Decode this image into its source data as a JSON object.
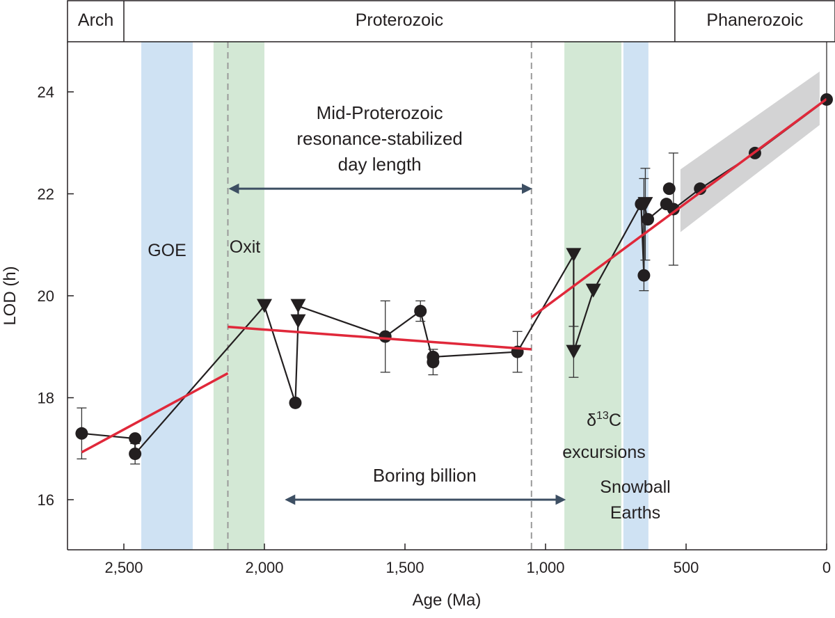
{
  "chart_data": {
    "type": "line",
    "xlabel": "Age (Ma)",
    "ylabel": "LOD (h)",
    "xlim": [
      2700,
      0
    ],
    "ylim": [
      15,
      25
    ],
    "x_reversed": true,
    "grid": false,
    "xticks": [
      2500,
      2000,
      1500,
      1000,
      500,
      0
    ],
    "xtick_labels": [
      "2,500",
      "2,000",
      "1,500",
      "1,000",
      "500",
      "0"
    ],
    "yticks": [
      16,
      18,
      20,
      22,
      24
    ],
    "ytick_labels": [
      "16",
      "18",
      "20",
      "22",
      "24"
    ],
    "eras": [
      {
        "label": "Arch",
        "from": 2700,
        "to": 2500
      },
      {
        "label": "Proterozoic",
        "from": 2500,
        "to": 540
      },
      {
        "label": "Phanerozoic",
        "from": 540,
        "to": 0
      }
    ],
    "bands": [
      {
        "label": "GOE",
        "from": 2438,
        "to": 2255,
        "color": "#cfe2f3"
      },
      {
        "label": "Oxit",
        "from": 2181,
        "to": 2000,
        "color": "#d3e8d5"
      },
      {
        "label_main": "δ",
        "label_sup": "13",
        "label_rest": "C",
        "label_line2": "excursions",
        "from": 933,
        "to": 730,
        "color": "#d3e8d5"
      },
      {
        "label_line1": "Snowball",
        "label_line2": "Earths",
        "from": 723,
        "to": 634,
        "color": "#cfe2f3"
      }
    ],
    "dashed_lines": [
      2130,
      1050
    ],
    "arrows": [
      {
        "lines": [
          "Mid-Proterozoic",
          "resonance-stabilized",
          "day length"
        ],
        "from": 2130,
        "to": 1050,
        "y": 22.1
      },
      {
        "lines": [
          "Boring billion"
        ],
        "from": 1930,
        "to": 930,
        "y": 16.0
      }
    ],
    "data_path": [
      [
        2650,
        17.3
      ],
      [
        2460,
        17.2
      ],
      [
        2460,
        16.9
      ],
      [
        2000,
        19.8
      ],
      [
        1890,
        17.9
      ],
      [
        1880,
        19.5
      ],
      [
        1880,
        19.8
      ],
      [
        1570,
        19.2
      ],
      [
        1445,
        19.7
      ],
      [
        1400,
        18.7
      ],
      [
        1400,
        18.8
      ],
      [
        1100,
        18.9
      ],
      [
        900,
        20.8
      ],
      [
        900,
        18.9
      ],
      [
        830,
        20.1
      ],
      [
        660,
        21.8
      ],
      [
        650,
        20.4
      ],
      [
        650,
        21.8
      ],
      [
        636,
        21.5
      ],
      [
        570,
        21.8
      ],
      [
        545,
        21.7
      ],
      [
        450,
        22.1
      ],
      [
        255,
        22.8
      ],
      [
        0,
        23.85
      ]
    ],
    "points": [
      {
        "x": 2650,
        "y": 17.3,
        "marker": "circle",
        "err": [
          16.8,
          17.8
        ]
      },
      {
        "x": 2460,
        "y": 17.2,
        "marker": "circle"
      },
      {
        "x": 2460,
        "y": 16.9,
        "marker": "circle",
        "err": [
          16.7,
          17.1
        ]
      },
      {
        "x": 2000,
        "y": 19.8,
        "marker": "triangle"
      },
      {
        "x": 1880,
        "y": 19.8,
        "marker": "triangle"
      },
      {
        "x": 1880,
        "y": 19.5,
        "marker": "triangle"
      },
      {
        "x": 1890,
        "y": 17.9,
        "marker": "circle"
      },
      {
        "x": 1570,
        "y": 19.2,
        "marker": "circle",
        "err": [
          18.5,
          19.9
        ]
      },
      {
        "x": 1445,
        "y": 19.7,
        "marker": "circle",
        "err": [
          19.5,
          19.9
        ]
      },
      {
        "x": 1400,
        "y": 18.8,
        "marker": "circle",
        "err": [
          18.45,
          18.95
        ]
      },
      {
        "x": 1400,
        "y": 18.7,
        "marker": "circle"
      },
      {
        "x": 1100,
        "y": 18.9,
        "marker": "circle",
        "err": [
          18.5,
          19.3
        ]
      },
      {
        "x": 900,
        "y": 20.8,
        "marker": "triangle"
      },
      {
        "x": 900,
        "y": 18.9,
        "marker": "triangle",
        "err": [
          18.4,
          19.4
        ]
      },
      {
        "x": 830,
        "y": 20.1,
        "marker": "triangle"
      },
      {
        "x": 650,
        "y": 20.4,
        "marker": "circle",
        "err": [
          20.1,
          22.3
        ]
      },
      {
        "x": 660,
        "y": 21.8,
        "marker": "circle"
      },
      {
        "x": 645,
        "y": 21.8,
        "marker": "triangle",
        "err": [
          20.7,
          22.5
        ]
      },
      {
        "x": 636,
        "y": 21.5,
        "marker": "circle"
      },
      {
        "x": 560,
        "y": 22.1,
        "marker": "circle"
      },
      {
        "x": 570,
        "y": 21.8,
        "marker": "circle"
      },
      {
        "x": 545,
        "y": 21.7,
        "marker": "circle",
        "err": [
          20.6,
          22.8
        ]
      },
      {
        "x": 450,
        "y": 22.1,
        "marker": "circle"
      },
      {
        "x": 255,
        "y": 22.8,
        "marker": "circle"
      },
      {
        "x": 0,
        "y": 23.85,
        "marker": "circle"
      }
    ],
    "fit_lines": [
      {
        "from": [
          2650,
          16.93
        ],
        "to": [
          2130,
          18.48
        ]
      },
      {
        "from": [
          2130,
          19.39
        ],
        "to": [
          1050,
          18.95
        ]
      },
      {
        "from": [
          1050,
          19.58
        ],
        "to": [
          0,
          23.86
        ]
      }
    ],
    "uncertainty_band": {
      "upper": [
        [
          520,
          22.48
        ],
        [
          25,
          24.4
        ]
      ],
      "lower": [
        [
          520,
          21.25
        ],
        [
          25,
          23.35
        ]
      ],
      "color": "#d3d3d4"
    },
    "colors": {
      "fit": "#e0283a",
      "data": "#231f20",
      "arrow": "#3d4f63",
      "dashed": "#9a9a9a"
    }
  }
}
